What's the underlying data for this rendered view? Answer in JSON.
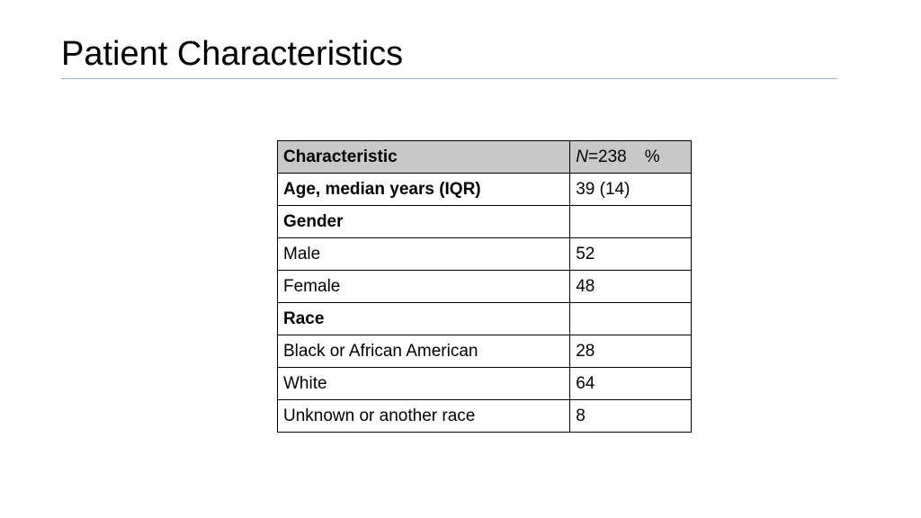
{
  "slide": {
    "title": "Patient Characteristics"
  },
  "table": {
    "header": {
      "characteristic": "Characteristic",
      "n_symbol": "N",
      "n_value": "=238",
      "percent": "%"
    },
    "rows": [
      {
        "label": "Age, median years (IQR)",
        "value": "39 (14)",
        "style": "bold"
      },
      {
        "label": "Gender",
        "value": "",
        "style": "bold"
      },
      {
        "label": "Male",
        "value": "52",
        "style": "indent"
      },
      {
        "label": "Female",
        "value": "48",
        "style": "indent"
      },
      {
        "label": "Race",
        "value": "",
        "style": "bold"
      },
      {
        "label": "Black or African American",
        "value": "28",
        "style": "indent"
      },
      {
        "label": "White",
        "value": "64",
        "style": "indent"
      },
      {
        "label": "Unknown or another race",
        "value": "8",
        "style": "indent"
      }
    ]
  },
  "colors": {
    "header_background": "#c8c8c8",
    "title_rule": "#8fb0cc",
    "border": "#000000"
  }
}
